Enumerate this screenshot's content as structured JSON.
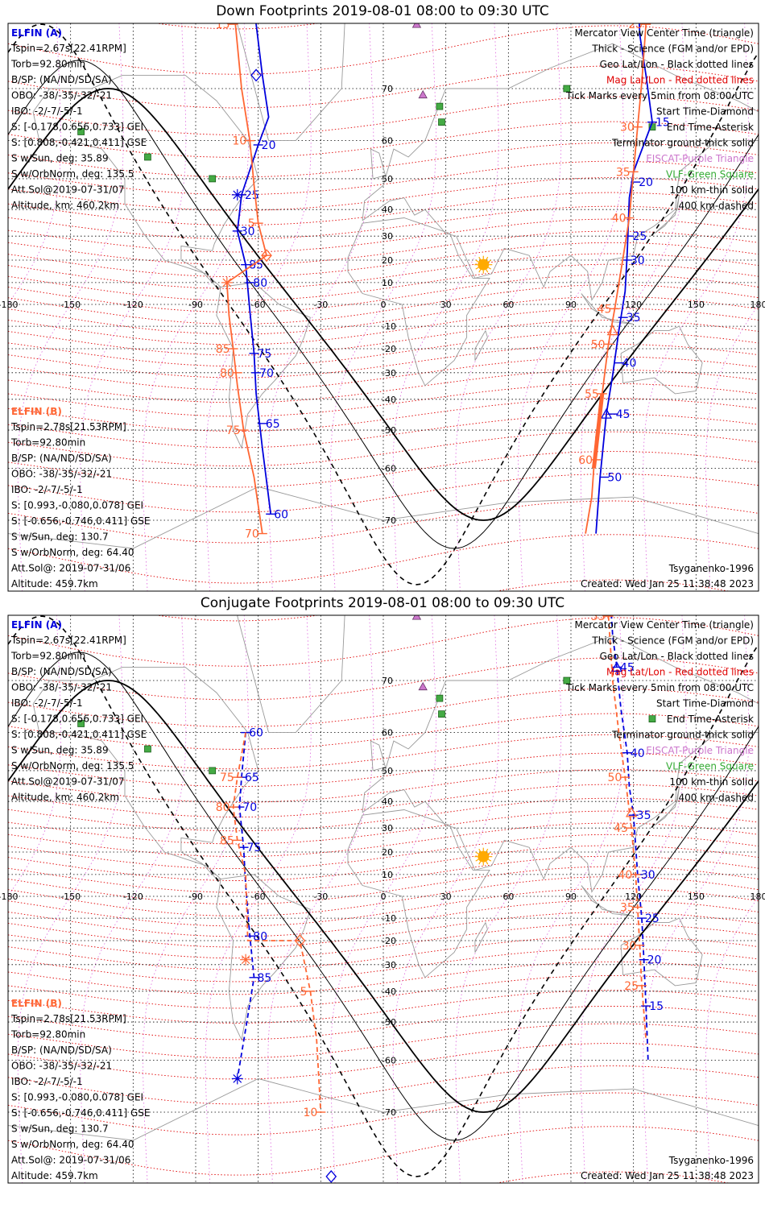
{
  "panels": [
    {
      "title": "Down Footprints 2019-08-01 08:00 to 09:30 UTC",
      "left_a": [
        "Tspin=2.67s[22.41RPM]",
        "Torb=92.80min",
        "B/SP: (NA/ND/SD/SA)",
        "OBO: -38/-35/-32/-21",
        "IBO: -2/-7/-5/-1",
        "S: [-0.178,0.656,0.733] GEI",
        "S: [0.808,-0.421,0.411] GSE",
        "S w/Sun, deg: 35.89",
        "S w/OrbNorm, deg: 135.5",
        "Att.Sol@2019-07-31/07",
        "Altitude, km: 460.2km"
      ],
      "left_b": [
        "Tspin=2.78s[21.53RPM]",
        "Torb=92.80min",
        "B/SP: (NA/ND/SD/SA)",
        "OBO: -38/-35/-32/-21",
        "IBO: -2/-7/-5/-1",
        "S: [0.993,-0.080,0.078] GEI",
        "S: [-0.656,-0.746,0.411] GSE",
        "S w/Sun, deg: 130.7",
        "S w/OrbNorm, deg: 64.40",
        "Att.Sol@: 2019-07-31/06",
        "Altitude: 459.7km"
      ],
      "model": "Tsyganenko-1996",
      "created": "Created: Wed Jan 25 11:38:48 2023"
    },
    {
      "title": "Conjugate Footprints 2019-08-01 08:00 to 09:30 UTC",
      "left_a": [
        "Tspin=2.67s[22.41RPM]",
        "Torb=92.80min",
        "B/SP: (NA/ND/SD/SA)",
        "OBO: -38/-35/-32/-21",
        "IBO: -2/-7/-5/-1",
        "S: [-0.178,0.656,0.733] GEI",
        "S: [0.808,-0.421,0.411] GSE",
        "S w/Sun, deg: 35.89",
        "S w/OrbNorm, deg: 135.5",
        "Att.Sol@2019-07-31/07",
        "Altitude, km: 460.2km"
      ],
      "left_b": [
        "Tspin=2.78s[21.53RPM]",
        "Torb=92.80min",
        "B/SP: (NA/ND/SD/SA)",
        "OBO: -38/-35/-32/-21",
        "IBO: -2/-7/-5/-1",
        "S: [0.993,-0.080,0.078] GEI",
        "S: [-0.656,-0.746,0.411] GSE",
        "S w/Sun, deg: 130.7",
        "S w/OrbNorm, deg: 64.40",
        "Att.Sol@: 2019-07-31/06",
        "Altitude: 459.7km"
      ],
      "model": "Tsyganenko-1996",
      "created": "Created: Wed Jan 25 11:38:48 2023"
    }
  ],
  "legend": [
    {
      "text": "Mercator View Center Time (triangle)",
      "color": "#000000"
    },
    {
      "text": "Thick - Science (FGM and/or EPD)",
      "color": "#000000"
    },
    {
      "text": "Geo Lat/Lon - Black dotted lines",
      "color": "#000000"
    },
    {
      "text": "Mag Lat/Lon - Red dotted lines",
      "color": "#e00000"
    },
    {
      "text": "Tick Marks every 5min from 08:00 UTC",
      "color": "#000000"
    },
    {
      "text": "Start Time-Diamond",
      "color": "#000000"
    },
    {
      "text": "End Time-Asterisk",
      "color": "#000000"
    },
    {
      "text": "Terminator ground-thick solid",
      "color": "#000000"
    },
    {
      "text": "EISCAT-Purple Triangle",
      "color": "#cc77cc"
    },
    {
      "text": "VLF-Green Square",
      "color": "#33aa33"
    },
    {
      "text": "100 km-thin solid",
      "color": "#000000"
    },
    {
      "text": "400 km-dashed",
      "color": "#000000"
    }
  ],
  "elfin_a_label": "ELFIN (A)",
  "elfin_b_label": "ELFIN (B)",
  "lon_ticks": [
    -180,
    -150,
    -120,
    -90,
    -60,
    -30,
    0,
    30,
    60,
    90,
    120,
    150,
    180
  ],
  "lat_ticks": [
    -70,
    -60,
    -50,
    -40,
    -30,
    -20,
    -10,
    0,
    10,
    20,
    30,
    40,
    50,
    60,
    70
  ],
  "colors": {
    "elfin_a": "#0000dd",
    "elfin_b": "#ff6633",
    "mag_grid": "#e00000",
    "geo_grid": "#000000",
    "eiscat": "#cc77cc",
    "vlf": "#44aa44",
    "sun": "#ffaa00",
    "coast": "#999999"
  },
  "subsolar_point": {
    "lon": 48,
    "lat": 18
  },
  "eiscat_sites": [
    {
      "lon": 16,
      "lat": 78
    },
    {
      "lon": 19,
      "lat": 69
    }
  ],
  "vlf_sites": [
    {
      "lon": -145,
      "lat": 62
    },
    {
      "lon": -113,
      "lat": 56
    },
    {
      "lon": -82,
      "lat": 50
    },
    {
      "lon": 27,
      "lat": 67
    },
    {
      "lon": 28,
      "lat": 64
    },
    {
      "lon": 88,
      "lat": 70
    },
    {
      "lon": 129,
      "lat": 63
    }
  ],
  "tracks": {
    "down": {
      "a": {
        "points": [
          [
            -64,
            83
          ],
          [
            -61,
            78
          ],
          [
            -58,
            72
          ],
          [
            -55,
            65
          ],
          [
            -60,
            59
          ],
          [
            -68,
            45
          ],
          [
            -70,
            32
          ],
          [
            -66,
            18
          ],
          [
            -64,
            -3
          ],
          [
            -62,
            -22
          ],
          [
            -61,
            -38
          ],
          [
            -58,
            -55
          ],
          [
            -54,
            -69
          ],
          [
            120,
            86
          ],
          [
            122,
            82
          ],
          [
            123,
            77
          ],
          [
            126,
            72
          ],
          [
            129,
            64
          ],
          [
            120,
            52
          ],
          [
            118,
            44
          ],
          [
            117,
            23
          ],
          [
            116,
            6
          ],
          [
            113,
            -12
          ],
          [
            110,
            -31
          ],
          [
            107,
            -45
          ],
          [
            104,
            -62
          ],
          [
            102,
            -72
          ]
        ],
        "ticks": [
          {
            "lon": -64,
            "lat": 83,
            "label": "15"
          },
          {
            "lon": -60,
            "lat": 59,
            "label": "20"
          },
          {
            "lon": -68,
            "lat": 45,
            "label": "25"
          },
          {
            "lon": -70,
            "lat": 32,
            "label": "30"
          },
          {
            "lon": -66,
            "lat": 18,
            "label": "85"
          },
          {
            "lon": -64,
            "lat": 10,
            "label": "80"
          },
          {
            "lon": -62,
            "lat": -22,
            "label": "75"
          },
          {
            "lon": -61,
            "lat": -30,
            "label": "70"
          },
          {
            "lon": -58,
            "lat": -48,
            "label": "65"
          },
          {
            "lon": -54,
            "lat": -69,
            "label": "60"
          },
          {
            "lon": 129,
            "lat": 64,
            "label": "15"
          },
          {
            "lon": 121,
            "lat": 49,
            "label": "20"
          },
          {
            "lon": 118,
            "lat": 30,
            "label": "25"
          },
          {
            "lon": 117,
            "lat": 20,
            "label": "30"
          },
          {
            "lon": 115,
            "lat": -6,
            "label": "35"
          },
          {
            "lon": 113,
            "lat": -26,
            "label": "40"
          },
          {
            "lon": 110,
            "lat": -45,
            "label": "45"
          },
          {
            "lon": 106,
            "lat": -62,
            "label": "50"
          }
        ]
      },
      "b": {
        "points": [
          [
            -72,
            80
          ],
          [
            -68,
            70
          ],
          [
            -64,
            60
          ],
          [
            -62,
            48
          ],
          [
            -60,
            35
          ],
          [
            -56,
            22
          ],
          [
            -75,
            10
          ],
          [
            -74,
            -5
          ],
          [
            -72,
            -20
          ],
          [
            -70,
            -35
          ],
          [
            -67,
            -50
          ],
          [
            -62,
            -62
          ],
          [
            -58,
            -72
          ],
          [
            132,
            86
          ],
          [
            126,
            78
          ],
          [
            124,
            71
          ],
          [
            122,
            63
          ],
          [
            120,
            52
          ],
          [
            118,
            37
          ],
          [
            115,
            21
          ],
          [
            111,
            -2
          ],
          [
            108,
            -18
          ],
          [
            105,
            -38
          ],
          [
            102,
            -52
          ],
          [
            100,
            -66
          ],
          [
            97,
            -72
          ]
        ],
        "ticks": [
          {
            "lon": -72,
            "lat": 78,
            "label": "15"
          },
          {
            "lon": -64,
            "lat": 60,
            "label": "10"
          },
          {
            "lon": -60,
            "lat": 35,
            "label": "5"
          },
          {
            "lon": -56,
            "lat": 22,
            "label": ""
          },
          {
            "lon": -72,
            "lat": -20,
            "label": "85"
          },
          {
            "lon": -70,
            "lat": -30,
            "label": "80"
          },
          {
            "lon": -67,
            "lat": -50,
            "label": "75"
          },
          {
            "lon": -58,
            "lat": -72,
            "label": "70"
          },
          {
            "lon": 126,
            "lat": 78,
            "label": "25"
          },
          {
            "lon": 122,
            "lat": 63,
            "label": "30"
          },
          {
            "lon": 120,
            "lat": 52,
            "label": "35"
          },
          {
            "lon": 118,
            "lat": 37,
            "label": "40"
          },
          {
            "lon": 111,
            "lat": -2,
            "label": "45"
          },
          {
            "lon": 108,
            "lat": -18,
            "label": "50"
          },
          {
            "lon": 105,
            "lat": -38,
            "label": "55"
          },
          {
            "lon": 102,
            "lat": -58,
            "label": "60"
          }
        ]
      }
    },
    "conjugate": {
      "a": {
        "points": [
          [
            -66,
            60
          ],
          [
            -68,
            48
          ],
          [
            -69,
            38
          ],
          [
            -67,
            22
          ],
          [
            -66,
            5
          ],
          [
            -64,
            -18
          ],
          [
            -62,
            -35
          ],
          [
            -66,
            -52
          ],
          [
            -70,
            -64
          ],
          [
            108,
            82
          ],
          [
            110,
            76
          ],
          [
            112,
            72
          ],
          [
            114,
            65
          ],
          [
            117,
            55
          ],
          [
            118,
            45
          ],
          [
            120,
            35
          ],
          [
            122,
            10
          ],
          [
            124,
            -10
          ],
          [
            125,
            -28
          ],
          [
            126,
            -45
          ],
          [
            127,
            -60
          ]
        ],
        "ticks": [
          {
            "lon": -66,
            "lat": 60,
            "label": "60"
          },
          {
            "lon": -68,
            "lat": 48,
            "label": "65"
          },
          {
            "lon": -69,
            "lat": 38,
            "label": "70"
          },
          {
            "lon": -67,
            "lat": 22,
            "label": "75"
          },
          {
            "lon": -64,
            "lat": -18,
            "label": "80"
          },
          {
            "lon": -62,
            "lat": -35,
            "label": "85"
          },
          {
            "lon": 112,
            "lat": 72,
            "label": "45"
          },
          {
            "lon": 117,
            "lat": 55,
            "label": "40"
          },
          {
            "lon": 120,
            "lat": 35,
            "label": "35"
          },
          {
            "lon": 122,
            "lat": 10,
            "label": "30"
          },
          {
            "lon": 124,
            "lat": -10,
            "label": "25"
          },
          {
            "lon": 125,
            "lat": -28,
            "label": "20"
          },
          {
            "lon": 126,
            "lat": -45,
            "label": "15"
          }
        ]
      },
      "b": {
        "points": [
          [
            -66,
            60
          ],
          [
            -70,
            48
          ],
          [
            -72,
            38
          ],
          [
            -70,
            25
          ],
          [
            -66,
            10
          ],
          [
            -65,
            -20
          ],
          [
            -40,
            -20
          ],
          [
            -35,
            -40
          ],
          [
            -32,
            -55
          ],
          [
            -30,
            -70
          ],
          [
            106,
            86
          ],
          [
            108,
            78
          ],
          [
            110,
            70
          ],
          [
            113,
            60
          ],
          [
            116,
            48
          ],
          [
            119,
            30
          ],
          [
            121,
            10
          ],
          [
            122,
            -5
          ],
          [
            123,
            -22
          ],
          [
            124,
            -38
          ],
          [
            126,
            -55
          ]
        ],
        "ticks": [
          {
            "lon": -70,
            "lat": 48,
            "label": "75"
          },
          {
            "lon": -72,
            "lat": 38,
            "label": "80"
          },
          {
            "lon": -70,
            "lat": 25,
            "label": "85"
          },
          {
            "lon": -35,
            "lat": -40,
            "label": "5"
          },
          {
            "lon": -30,
            "lat": -70,
            "label": "10"
          },
          {
            "lon": 108,
            "lat": 78,
            "label": "55"
          },
          {
            "lon": 116,
            "lat": 48,
            "label": "50"
          },
          {
            "lon": 119,
            "lat": 30,
            "label": "45"
          },
          {
            "lon": 121,
            "lat": 10,
            "label": "40"
          },
          {
            "lon": 122,
            "lat": -5,
            "label": "35"
          },
          {
            "lon": 123,
            "lat": -22,
            "label": "30"
          },
          {
            "lon": 124,
            "lat": -38,
            "label": "25"
          }
        ]
      }
    }
  }
}
